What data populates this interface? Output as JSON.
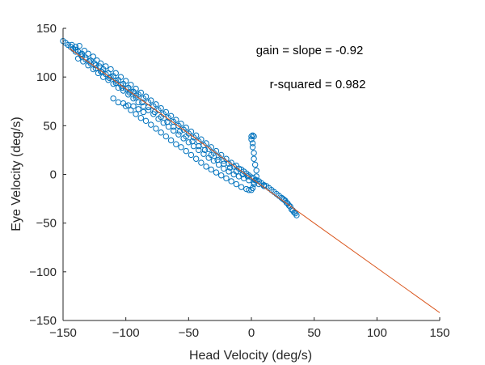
{
  "chart_data": {
    "type": "scatter",
    "title": "",
    "xlabel": "Head Velocity (deg/s)",
    "ylabel": "Eye Velocity (deg/s)",
    "xlim": [
      -150,
      150
    ],
    "ylim": [
      -150,
      150
    ],
    "xticks": [
      -150,
      -100,
      -50,
      0,
      50,
      100,
      150
    ],
    "yticks": [
      -150,
      -100,
      -50,
      0,
      50,
      100,
      150
    ],
    "grid": false,
    "annotations": [
      "gain = slope = -0.92",
      "r-squared = 0.982"
    ],
    "fit_line": {
      "slope": -0.92,
      "intercept": -4,
      "x_range": [
        -145,
        150
      ],
      "color": "#D95319"
    },
    "scatter_color": "#0072BD",
    "series": [
      {
        "name": "",
        "points": [
          [
            -150,
            137
          ],
          [
            -148,
            135
          ],
          [
            -146,
            133
          ],
          [
            -144,
            131
          ],
          [
            -143,
            133
          ],
          [
            -142,
            129
          ],
          [
            -140,
            131
          ],
          [
            -138,
            126
          ],
          [
            -137,
            132
          ],
          [
            -135,
            124
          ],
          [
            -133,
            127
          ],
          [
            -132,
            120
          ],
          [
            -130,
            124
          ],
          [
            -128,
            117
          ],
          [
            -126,
            121
          ],
          [
            -125,
            114
          ],
          [
            -123,
            117
          ],
          [
            -121,
            111
          ],
          [
            -120,
            114
          ],
          [
            -118,
            108
          ],
          [
            -116,
            111
          ],
          [
            -114,
            104
          ],
          [
            -112,
            108
          ],
          [
            -110,
            101
          ],
          [
            -108,
            104
          ],
          [
            -106,
            97
          ],
          [
            -104,
            100
          ],
          [
            -102,
            93
          ],
          [
            -100,
            96
          ],
          [
            -98,
            89
          ],
          [
            -96,
            92
          ],
          [
            -94,
            85
          ],
          [
            -92,
            88
          ],
          [
            -90,
            82
          ],
          [
            -88,
            84
          ],
          [
            -86,
            78
          ],
          [
            -84,
            80
          ],
          [
            -82,
            74
          ],
          [
            -80,
            76
          ],
          [
            -78,
            70
          ],
          [
            -76,
            72
          ],
          [
            -74,
            66
          ],
          [
            -72,
            68
          ],
          [
            -70,
            62
          ],
          [
            -68,
            64
          ],
          [
            -66,
            58
          ],
          [
            -64,
            60
          ],
          [
            -62,
            54
          ],
          [
            -60,
            56
          ],
          [
            -58,
            50
          ],
          [
            -56,
            52
          ],
          [
            -54,
            46
          ],
          [
            -52,
            48
          ],
          [
            -50,
            42
          ],
          [
            -48,
            44
          ],
          [
            -46,
            38
          ],
          [
            -44,
            40
          ],
          [
            -42,
            34
          ],
          [
            -40,
            36
          ],
          [
            -38,
            30
          ],
          [
            -36,
            32
          ],
          [
            -34,
            26
          ],
          [
            -32,
            28
          ],
          [
            -30,
            22
          ],
          [
            -28,
            24
          ],
          [
            -26,
            18
          ],
          [
            -24,
            20
          ],
          [
            -22,
            14
          ],
          [
            -20,
            16
          ],
          [
            -18,
            11
          ],
          [
            -16,
            12
          ],
          [
            -14,
            8
          ],
          [
            -12,
            9
          ],
          [
            -10,
            6
          ],
          [
            -8,
            5
          ],
          [
            -6,
            3
          ],
          [
            -4,
            1
          ],
          [
            -2,
            -1
          ],
          [
            0,
            -3
          ],
          [
            2,
            -4
          ],
          [
            4,
            -6
          ],
          [
            6,
            -7
          ],
          [
            8,
            -9
          ],
          [
            10,
            -11
          ],
          [
            12,
            -12
          ],
          [
            14,
            -14
          ],
          [
            16,
            -16
          ],
          [
            18,
            -18
          ],
          [
            20,
            -20
          ],
          [
            22,
            -22
          ],
          [
            24,
            -24
          ],
          [
            -138,
            119
          ],
          [
            -134,
            116
          ],
          [
            -130,
            112
          ],
          [
            -126,
            108
          ],
          [
            -122,
            104
          ],
          [
            -118,
            100
          ],
          [
            -114,
            97
          ],
          [
            -110,
            93
          ],
          [
            -106,
            89
          ],
          [
            -102,
            86
          ],
          [
            -98,
            82
          ],
          [
            -94,
            78
          ],
          [
            -90,
            74
          ],
          [
            -86,
            70
          ],
          [
            -82,
            66
          ],
          [
            -78,
            62
          ],
          [
            -74,
            57
          ],
          [
            -70,
            53
          ],
          [
            -66,
            49
          ],
          [
            -62,
            45
          ],
          [
            -58,
            41
          ],
          [
            -54,
            37
          ],
          [
            -50,
            33
          ],
          [
            -46,
            29
          ],
          [
            -42,
            25
          ],
          [
            -38,
            21
          ],
          [
            -34,
            17
          ],
          [
            -30,
            14
          ],
          [
            -26,
            10
          ],
          [
            -22,
            6
          ],
          [
            -18,
            3
          ],
          [
            -14,
            0
          ],
          [
            -10,
            -2
          ],
          [
            -6,
            -4
          ],
          [
            -2,
            -6
          ],
          [
            2,
            -8
          ],
          [
            6,
            -10
          ],
          [
            10,
            -12
          ],
          [
            -140,
            128
          ],
          [
            -135,
            121
          ],
          [
            -129,
            116
          ],
          [
            -124,
            109
          ],
          [
            -119,
            105
          ],
          [
            -113,
            99
          ],
          [
            -108,
            94
          ],
          [
            -103,
            89
          ],
          [
            -97,
            84
          ],
          [
            -92,
            79
          ],
          [
            -87,
            74
          ],
          [
            -82,
            69
          ],
          [
            -77,
            64
          ],
          [
            -72,
            59
          ],
          [
            -67,
            54
          ],
          [
            -62,
            49
          ],
          [
            -57,
            44
          ],
          [
            -52,
            39
          ],
          [
            -47,
            34
          ],
          [
            -42,
            29
          ],
          [
            -37,
            25
          ],
          [
            -32,
            20
          ],
          [
            -27,
            15
          ],
          [
            -22,
            11
          ],
          [
            -17,
            7
          ],
          [
            -12,
            3
          ],
          [
            -7,
            0
          ],
          [
            -3,
            -2
          ],
          [
            -100,
            70
          ],
          [
            -96,
            66
          ],
          [
            -92,
            62
          ],
          [
            -88,
            58
          ],
          [
            -84,
            55
          ],
          [
            -80,
            51
          ],
          [
            -76,
            47
          ],
          [
            -72,
            43
          ],
          [
            -68,
            39
          ],
          [
            -64,
            35
          ],
          [
            -60,
            31
          ],
          [
            -56,
            28
          ],
          [
            -52,
            24
          ],
          [
            -48,
            20
          ],
          [
            -44,
            16
          ],
          [
            -40,
            12
          ],
          [
            -36,
            8
          ],
          [
            -32,
            5
          ],
          [
            -28,
            2
          ],
          [
            -24,
            -1
          ],
          [
            -20,
            -4
          ],
          [
            -16,
            -7
          ],
          [
            -12,
            -10
          ],
          [
            -8,
            -13
          ],
          [
            -4,
            -15
          ],
          [
            -2,
            -16
          ],
          [
            0,
            -16
          ],
          [
            1,
            -14
          ],
          [
            2,
            -10
          ],
          [
            3,
            -6
          ],
          [
            4,
            -2
          ],
          [
            4,
            4
          ],
          [
            3,
            10
          ],
          [
            2,
            16
          ],
          [
            2,
            22
          ],
          [
            1,
            28
          ],
          [
            1,
            32
          ],
          [
            0,
            36
          ],
          [
            0,
            39
          ],
          [
            1,
            40
          ],
          [
            2,
            39
          ],
          [
            26,
            -26
          ],
          [
            28,
            -29
          ],
          [
            30,
            -32
          ],
          [
            32,
            -36
          ],
          [
            34,
            -39
          ],
          [
            36,
            -42
          ],
          [
            35,
            -40
          ],
          [
            33,
            -37
          ],
          [
            31,
            -33
          ],
          [
            29,
            -30
          ],
          [
            27,
            -27
          ],
          [
            25,
            -25
          ],
          [
            -110,
            78
          ],
          [
            -106,
            74
          ],
          [
            -102,
            73
          ],
          [
            -98,
            71
          ],
          [
            -94,
            70
          ],
          [
            -90,
            67
          ],
          [
            -86,
            64
          ],
          [
            -140,
            126
          ],
          [
            -136,
            123
          ],
          [
            -132,
            118
          ],
          [
            -128,
            114
          ],
          [
            -124,
            112
          ],
          [
            -120,
            106
          ],
          [
            -116,
            103
          ],
          [
            -112,
            100
          ],
          [
            -108,
            96
          ],
          [
            -104,
            92
          ],
          [
            -100,
            88
          ],
          [
            -96,
            85
          ],
          [
            -92,
            81
          ]
        ]
      }
    ]
  }
}
